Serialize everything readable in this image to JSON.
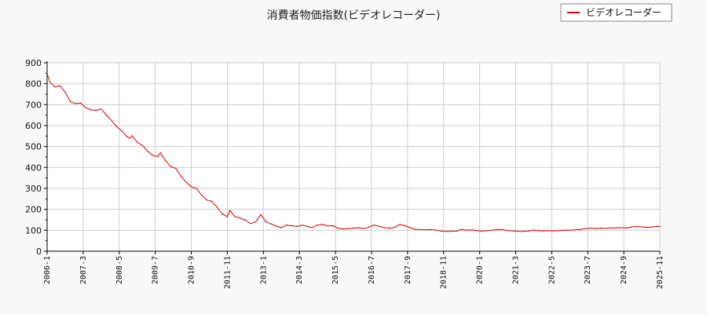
{
  "chart_data": {
    "type": "line",
    "title": "消費者物価指数(ビデオレコーダー)",
    "xlabel": "",
    "ylabel": "",
    "ylim": [
      0,
      900
    ],
    "yticks": [
      0,
      100,
      200,
      300,
      400,
      500,
      600,
      700,
      800,
      900
    ],
    "xticks": [
      "2006-1",
      "2007-3",
      "2008-5",
      "2009-7",
      "2010-9",
      "2011-11",
      "2013-1",
      "2014-3",
      "2015-5",
      "2016-7",
      "2017-9",
      "2018-11",
      "2020-1",
      "2021-3",
      "2022-5",
      "2023-7",
      "2024-9",
      "2025-11"
    ],
    "grid": true,
    "legend": {
      "position": "top-right"
    },
    "colors": {
      "series": "#dd0000",
      "grid": "#cccccc",
      "axis": "#000000",
      "background": "#ffffff"
    },
    "series": [
      {
        "name": "ビデオレコーダー",
        "points": [
          [
            "2006-1",
            848
          ],
          [
            "2006-2",
            810
          ],
          [
            "2006-4",
            785
          ],
          [
            "2006-6",
            790
          ],
          [
            "2006-8",
            760
          ],
          [
            "2006-10",
            715
          ],
          [
            "2006-12",
            705
          ],
          [
            "2007-2",
            708
          ],
          [
            "2007-4",
            685
          ],
          [
            "2007-6",
            675
          ],
          [
            "2007-8",
            672
          ],
          [
            "2007-10",
            680
          ],
          [
            "2007-12",
            650
          ],
          [
            "2008-2",
            625
          ],
          [
            "2008-4",
            595
          ],
          [
            "2008-6",
            575
          ],
          [
            "2008-8",
            548
          ],
          [
            "2008-9",
            540
          ],
          [
            "2008-10",
            552
          ],
          [
            "2008-12",
            520
          ],
          [
            "2009-2",
            505
          ],
          [
            "2009-4",
            478
          ],
          [
            "2009-6",
            458
          ],
          [
            "2009-8",
            452
          ],
          [
            "2009-9",
            470
          ],
          [
            "2009-11",
            432
          ],
          [
            "2010-1",
            405
          ],
          [
            "2010-3",
            395
          ],
          [
            "2010-5",
            358
          ],
          [
            "2010-7",
            330
          ],
          [
            "2010-9",
            308
          ],
          [
            "2010-11",
            300
          ],
          [
            "2011-1",
            268
          ],
          [
            "2011-3",
            245
          ],
          [
            "2011-5",
            238
          ],
          [
            "2011-7",
            210
          ],
          [
            "2011-9",
            178
          ],
          [
            "2011-11",
            165
          ],
          [
            "2011-12",
            195
          ],
          [
            "2012-2",
            165
          ],
          [
            "2012-4",
            158
          ],
          [
            "2012-6",
            148
          ],
          [
            "2012-8",
            132
          ],
          [
            "2012-10",
            140
          ],
          [
            "2012-12",
            175
          ],
          [
            "2013-2",
            140
          ],
          [
            "2013-4",
            130
          ],
          [
            "2013-6",
            120
          ],
          [
            "2013-8",
            112
          ],
          [
            "2013-10",
            125
          ],
          [
            "2013-12",
            122
          ],
          [
            "2014-2",
            118
          ],
          [
            "2014-4",
            125
          ],
          [
            "2014-6",
            118
          ],
          [
            "2014-8",
            113
          ],
          [
            "2014-10",
            125
          ],
          [
            "2014-12",
            128
          ],
          [
            "2015-2",
            120
          ],
          [
            "2015-4",
            122
          ],
          [
            "2015-6",
            110
          ],
          [
            "2015-8",
            106
          ],
          [
            "2015-10",
            108
          ],
          [
            "2015-12",
            110
          ],
          [
            "2016-2",
            112
          ],
          [
            "2016-4",
            108
          ],
          [
            "2016-6",
            115
          ],
          [
            "2016-8",
            125
          ],
          [
            "2016-10",
            118
          ],
          [
            "2016-12",
            112
          ],
          [
            "2017-2",
            110
          ],
          [
            "2017-4",
            114
          ],
          [
            "2017-6",
            128
          ],
          [
            "2017-8",
            122
          ],
          [
            "2017-10",
            112
          ],
          [
            "2017-12",
            105
          ],
          [
            "2018-2",
            103
          ],
          [
            "2018-4",
            102
          ],
          [
            "2018-6",
            103
          ],
          [
            "2018-8",
            100
          ],
          [
            "2018-10",
            96
          ],
          [
            "2018-12",
            95
          ],
          [
            "2019-2",
            95
          ],
          [
            "2019-4",
            96
          ],
          [
            "2019-6",
            104
          ],
          [
            "2019-8",
            100
          ],
          [
            "2019-10",
            102
          ],
          [
            "2019-12",
            98
          ],
          [
            "2020-2",
            96
          ],
          [
            "2020-4",
            98
          ],
          [
            "2020-6",
            100
          ],
          [
            "2020-8",
            104
          ],
          [
            "2020-10",
            103
          ],
          [
            "2020-12",
            98
          ],
          [
            "2021-2",
            97
          ],
          [
            "2021-4",
            95
          ],
          [
            "2021-6",
            94
          ],
          [
            "2021-8",
            97
          ],
          [
            "2021-10",
            100
          ],
          [
            "2021-12",
            98
          ],
          [
            "2022-2",
            97
          ],
          [
            "2022-4",
            98
          ],
          [
            "2022-6",
            97
          ],
          [
            "2022-8",
            98
          ],
          [
            "2022-10",
            100
          ],
          [
            "2022-12",
            100
          ],
          [
            "2023-2",
            102
          ],
          [
            "2023-4",
            104
          ],
          [
            "2023-6",
            108
          ],
          [
            "2023-8",
            110
          ],
          [
            "2023-10",
            108
          ],
          [
            "2023-12",
            110
          ],
          [
            "2024-2",
            109
          ],
          [
            "2024-4",
            111
          ],
          [
            "2024-6",
            111
          ],
          [
            "2024-8",
            113
          ],
          [
            "2024-10",
            111
          ],
          [
            "2024-12",
            115
          ],
          [
            "2025-2",
            118
          ],
          [
            "2025-4",
            116
          ],
          [
            "2025-6",
            114
          ],
          [
            "2025-8",
            116
          ],
          [
            "2025-10",
            118
          ],
          [
            "2025-11",
            118
          ]
        ]
      }
    ]
  }
}
